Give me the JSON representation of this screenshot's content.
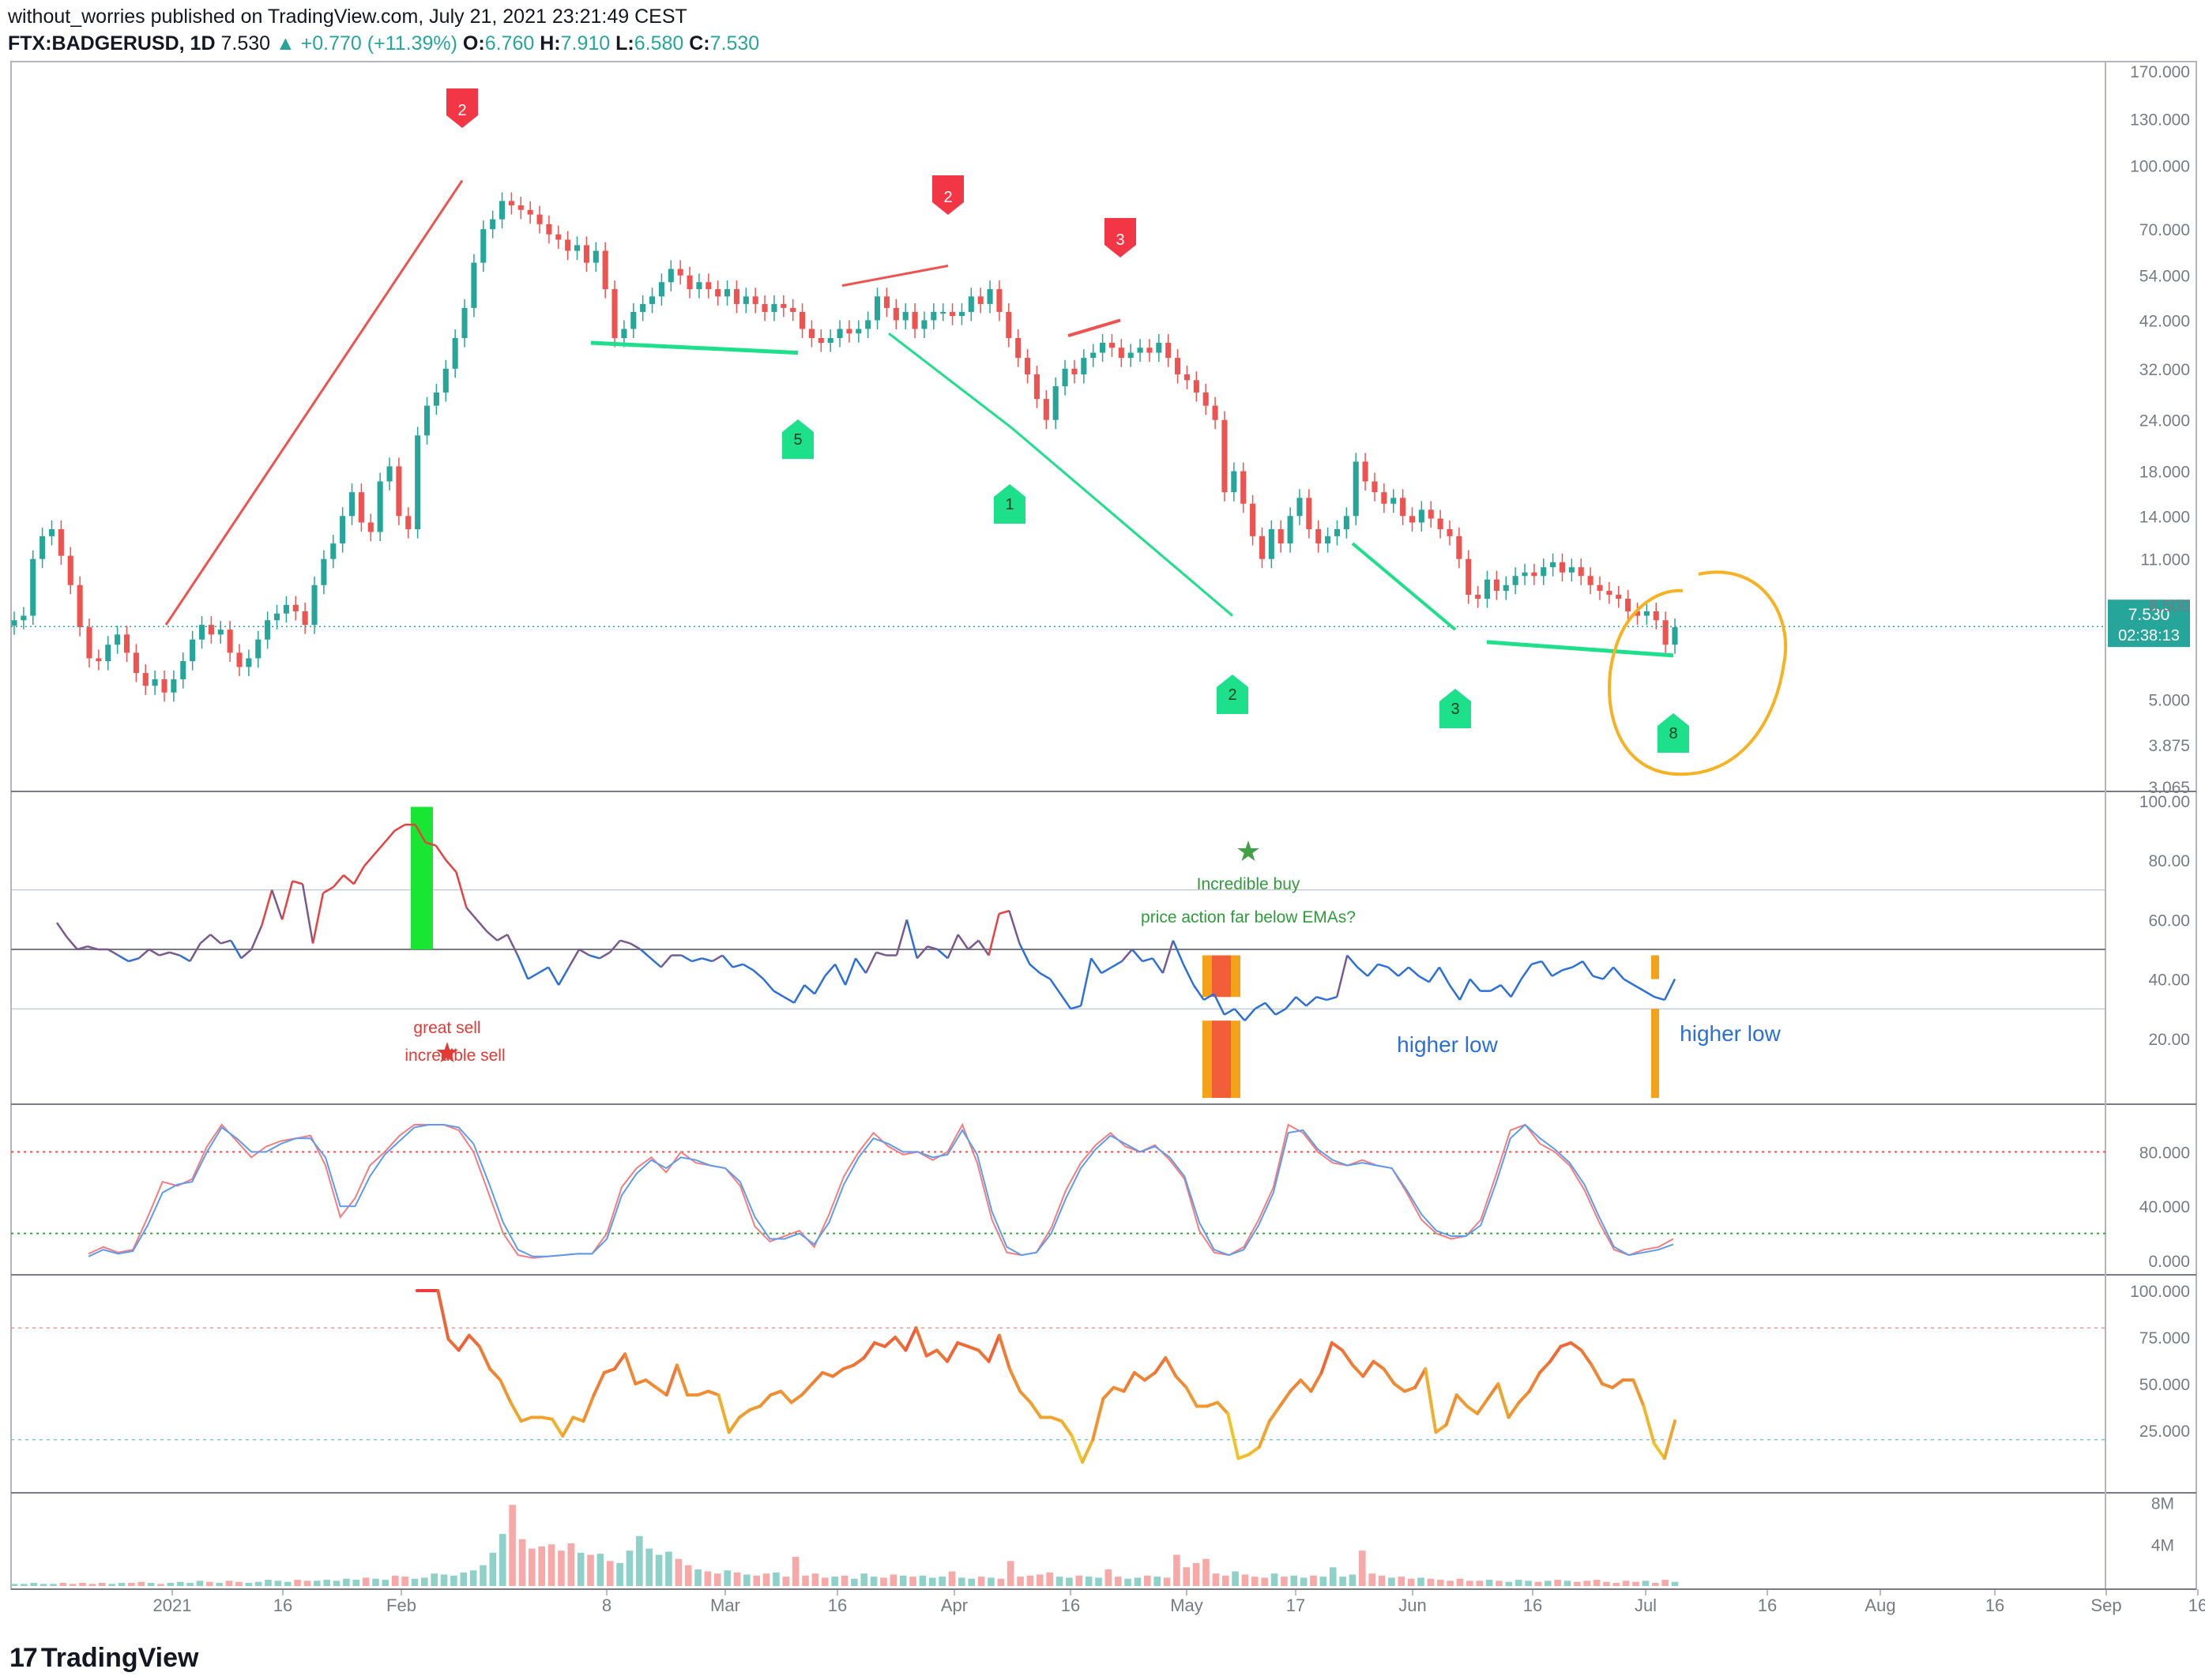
{
  "header": {
    "line1": "without_worries published on TradingView.com, July 21, 2021 23:21:49 CEST",
    "symbol": "FTX:BADGERUSD, 1D",
    "last": "7.530",
    "change": "▲ +0.770 (+11.39%)",
    "o_label": "O:",
    "o_value": "6.760",
    "h_label": "H:",
    "h_value": "7.910",
    "l_label": "L:",
    "l_value": "6.580",
    "c_label": "C:",
    "c_value": "7.530"
  },
  "price_badge": {
    "price": "7.530",
    "countdown": "02:38:13"
  },
  "footer": {
    "brand": "TradingView",
    "logo_icon": "tradingview-logo-icon"
  },
  "colors": {
    "up": "#26a69a",
    "down": "#ef5350",
    "signal_green": "#1de08a",
    "signal_red": "#f23645",
    "circle": "#f6b221",
    "rsi_blue": "#2a6fdb"
  },
  "chart_data": [
    {
      "type": "candlestick",
      "pane": "price",
      "scale": "log",
      "y_ticks": [
        "170.000",
        "130.000",
        "100.000",
        "70.000",
        "54.000",
        "42.000",
        "32.000",
        "24.000",
        "18.000",
        "14.000",
        "11.000",
        "8.500",
        "5.000",
        "3.875",
        "3.065"
      ],
      "x_ticks": [
        "2021",
        "16",
        "Feb",
        "8",
        "Mar",
        "16",
        "Apr",
        "16",
        "May",
        "17",
        "Jun",
        "16",
        "Jul",
        "16",
        "Aug",
        "16",
        "Sep",
        "16"
      ],
      "close_series_approx": [
        7.8,
        8.0,
        11.0,
        12.5,
        13.0,
        11.2,
        9.5,
        7.5,
        6.3,
        6.2,
        6.8,
        7.2,
        6.5,
        5.8,
        5.4,
        5.6,
        5.2,
        5.6,
        6.2,
        7.0,
        7.6,
        7.2,
        7.4,
        6.5,
        6.0,
        6.3,
        7.0,
        7.8,
        8.1,
        8.5,
        8.2,
        7.6,
        9.5,
        11.0,
        12.0,
        14.0,
        16.0,
        13.5,
        12.8,
        17.0,
        18.5,
        14.0,
        13.0,
        22.0,
        26.0,
        28.0,
        32.0,
        38.0,
        45.0,
        58.0,
        70.0,
        74.0,
        82.0,
        80.0,
        78.0,
        76.0,
        72.0,
        68.0,
        66.0,
        62.0,
        64.0,
        58.0,
        62.0,
        50.0,
        38.0,
        40.0,
        44.0,
        46.0,
        48.0,
        52.0,
        56.0,
        54.0,
        50.0,
        52.0,
        50.0,
        48.0,
        50.0,
        46.0,
        48.0,
        46.0,
        44.0,
        46.0,
        45.0,
        44.0,
        40.0,
        38.0,
        37.0,
        38.0,
        40.0,
        39.0,
        40.0,
        42.0,
        48.0,
        45.0,
        42.0,
        44.0,
        40.0,
        42.0,
        44.0,
        44.0,
        43.0,
        44.0,
        48.0,
        46.0,
        50.0,
        44.0,
        38.0,
        34.0,
        31.0,
        27.0,
        24.0,
        29.0,
        32.0,
        31.0,
        34.0,
        35.0,
        37.0,
        36.0,
        34.0,
        35.0,
        36.0,
        35.0,
        37.0,
        34.0,
        31.0,
        30.0,
        28.0,
        26.0,
        24.0,
        16.0,
        18.0,
        15.0,
        12.5,
        11.0,
        13.0,
        12.0,
        14.0,
        15.5,
        13.0,
        12.0,
        12.5,
        13.0,
        14.0,
        19.0,
        17.0,
        16.0,
        15.0,
        15.5,
        14.0,
        13.5,
        14.5,
        13.8,
        13.0,
        12.5,
        11.0,
        9.0,
        8.8,
        9.8,
        9.2,
        9.5,
        10.0,
        10.2,
        10.0,
        10.5,
        10.8,
        10.2,
        10.5,
        10.0,
        9.5,
        9.2,
        9.0,
        8.8,
        8.2,
        8.0,
        8.2,
        7.8,
        6.8,
        7.5
      ],
      "annotations": [
        {
          "label": "2",
          "kind": "sell"
        },
        {
          "label": "2",
          "kind": "sell"
        },
        {
          "label": "3",
          "kind": "sell"
        },
        {
          "label": "5",
          "kind": "buy"
        },
        {
          "label": "1",
          "kind": "buy"
        },
        {
          "label": "2",
          "kind": "buy"
        },
        {
          "label": "3",
          "kind": "buy"
        },
        {
          "label": "8",
          "kind": "buy"
        }
      ]
    },
    {
      "type": "line",
      "pane": "rsi",
      "y_ticks": [
        "100.00",
        "80.00",
        "60.00",
        "40.00",
        "20.00"
      ],
      "ylim": [
        0,
        100
      ],
      "bands": [
        30,
        50,
        70
      ],
      "values_approx": [
        59,
        54,
        50,
        51,
        50,
        50,
        48,
        46,
        47,
        50,
        48,
        49,
        48,
        46,
        52,
        55,
        52,
        53,
        47,
        50,
        58,
        70,
        60,
        73,
        72,
        52,
        69,
        71,
        75,
        72,
        78,
        82,
        86,
        90,
        92,
        92,
        86,
        85,
        80,
        76,
        64,
        60,
        56,
        53,
        55,
        48,
        40,
        42,
        44,
        38,
        44,
        50,
        48,
        47,
        49,
        53,
        52,
        50,
        47,
        44,
        48,
        48,
        46,
        47,
        46,
        48,
        44,
        45,
        43,
        40,
        36,
        34,
        32,
        38,
        35,
        41,
        45,
        38,
        47,
        42,
        49,
        48,
        48,
        60,
        47,
        51,
        50,
        47,
        55,
        50,
        53,
        48,
        62,
        63,
        52,
        45,
        42,
        40,
        35,
        30,
        31,
        47,
        42,
        44,
        46,
        50,
        46,
        47,
        42,
        53,
        45,
        38,
        33,
        35,
        28,
        30,
        26,
        30,
        32,
        28,
        30,
        34,
        31,
        34,
        33,
        34,
        48,
        44,
        41,
        45,
        44,
        41,
        44,
        41,
        39,
        44,
        38,
        33,
        40,
        36,
        36,
        38,
        34,
        40,
        45,
        46,
        41,
        43,
        44,
        46,
        41,
        40,
        44,
        40,
        38,
        36,
        34,
        33,
        40
      ],
      "texts": {
        "incredible_buy": "Incredible buy",
        "price_action": "price action far below EMAs?",
        "great_sell": "great sell",
        "incredible_sell": "incredible sell",
        "higher_low_1": "higher low",
        "higher_low_2": "higher low"
      }
    },
    {
      "type": "line",
      "pane": "stoch_rsi",
      "y_ticks": [
        "80.000",
        "40.000",
        "0.000"
      ],
      "ylim": [
        0,
        100
      ],
      "levels": [
        80,
        20
      ],
      "series": [
        {
          "values_approx": [
            5,
            10,
            6,
            8,
            32,
            58,
            55,
            60,
            84,
            100,
            88,
            76,
            84,
            88,
            90,
            92,
            70,
            32,
            46,
            70,
            80,
            92,
            100,
            100,
            100,
            96,
            80,
            50,
            20,
            4,
            2,
            3,
            4,
            5,
            5,
            20,
            54,
            68,
            76,
            65,
            80,
            72,
            70,
            68,
            55,
            25,
            14,
            18,
            22,
            10,
            34,
            62,
            80,
            94,
            84,
            78,
            80,
            74,
            80,
            100,
            72,
            30,
            6,
            4,
            6,
            24,
            52,
            72,
            85,
            94,
            84,
            80,
            85,
            74,
            60,
            22,
            6,
            4,
            10,
            30,
            54,
            100,
            94,
            80,
            72,
            70,
            74,
            70,
            68,
            50,
            30,
            20,
            16,
            18,
            30,
            62,
            96,
            100,
            86,
            80,
            70,
            52,
            28,
            8,
            4,
            8,
            10,
            16
          ]
        },
        {
          "values_approx": [
            3,
            8,
            5,
            7,
            26,
            50,
            56,
            58,
            80,
            98,
            90,
            80,
            80,
            86,
            90,
            90,
            76,
            40,
            40,
            62,
            78,
            88,
            98,
            100,
            100,
            98,
            86,
            58,
            28,
            8,
            3,
            3,
            4,
            5,
            5,
            16,
            48,
            64,
            74,
            68,
            76,
            74,
            70,
            68,
            58,
            32,
            16,
            16,
            20,
            12,
            28,
            56,
            76,
            90,
            86,
            80,
            80,
            76,
            78,
            96,
            78,
            36,
            10,
            4,
            6,
            20,
            46,
            68,
            82,
            92,
            86,
            80,
            84,
            76,
            62,
            28,
            8,
            4,
            8,
            26,
            50,
            94,
            96,
            82,
            74,
            70,
            72,
            70,
            68,
            52,
            34,
            22,
            18,
            18,
            26,
            56,
            90,
            100,
            90,
            82,
            72,
            56,
            32,
            10,
            4,
            6,
            8,
            12
          ]
        }
      ]
    },
    {
      "type": "line",
      "pane": "oscillator",
      "y_ticks": [
        "100.000",
        "75.000",
        "50.000",
        "25.000"
      ],
      "ylim": [
        0,
        100
      ],
      "levels": [
        80,
        20
      ],
      "values_approx": [
        100,
        100,
        100,
        74,
        68,
        76,
        70,
        58,
        52,
        40,
        30,
        32,
        32,
        31,
        22,
        32,
        30,
        44,
        56,
        58,
        66,
        50,
        52,
        48,
        44,
        60,
        44,
        44,
        46,
        44,
        24,
        32,
        36,
        38,
        44,
        46,
        40,
        44,
        50,
        56,
        54,
        58,
        60,
        64,
        72,
        70,
        75,
        68,
        80,
        65,
        68,
        62,
        72,
        70,
        68,
        62,
        76,
        58,
        46,
        40,
        32,
        32,
        30,
        22,
        8,
        20,
        42,
        48,
        46,
        56,
        52,
        56,
        64,
        54,
        48,
        38,
        38,
        40,
        34,
        10,
        12,
        16,
        30,
        38,
        46,
        52,
        46,
        56,
        72,
        68,
        60,
        54,
        62,
        58,
        50,
        46,
        48,
        58,
        24,
        28,
        44,
        38,
        34,
        42,
        50,
        32,
        40,
        46,
        56,
        62,
        70,
        72,
        68,
        60,
        50,
        48,
        52,
        52,
        38,
        18,
        10,
        30
      ]
    },
    {
      "type": "bar",
      "pane": "volume",
      "y_ticks": [
        "8M",
        "4M"
      ],
      "values_approx": [
        0.2,
        0.2,
        0.3,
        0.2,
        0.2,
        0.3,
        0.2,
        0.3,
        0.2,
        0.3,
        0.2,
        0.3,
        0.3,
        0.4,
        0.3,
        0.2,
        0.3,
        0.4,
        0.3,
        0.5,
        0.4,
        0.3,
        0.5,
        0.4,
        0.3,
        0.4,
        0.6,
        0.5,
        0.4,
        0.6,
        0.5,
        0.5,
        0.6,
        0.5,
        0.7,
        0.6,
        0.8,
        0.7,
        0.6,
        1.0,
        0.9,
        0.7,
        0.8,
        1.2,
        1.1,
        1.0,
        1.3,
        1.5,
        2.0,
        3.2,
        5.0,
        7.8,
        4.5,
        3.6,
        3.8,
        4.0,
        3.4,
        4.1,
        3.2,
        3.0,
        3.1,
        2.4,
        2.2,
        3.4,
        4.8,
        3.6,
        3.0,
        3.3,
        2.6,
        2.0,
        1.6,
        1.4,
        1.2,
        1.5,
        1.3,
        1.1,
        1.0,
        1.2,
        1.3,
        0.9,
        2.8,
        1.0,
        1.2,
        0.8,
        0.9,
        1.0,
        0.7,
        1.2,
        0.9,
        0.8,
        1.1,
        1.0,
        0.9,
        1.0,
        0.8,
        0.9,
        1.4,
        0.8,
        0.7,
        0.9,
        0.8,
        0.7,
        2.4,
        0.9,
        1.0,
        1.1,
        1.3,
        0.9,
        0.8,
        1.0,
        0.9,
        0.8,
        1.6,
        0.9,
        0.7,
        0.8,
        1.0,
        0.9,
        0.8,
        3.0,
        1.8,
        2.2,
        2.6,
        1.2,
        1.0,
        1.4,
        1.1,
        0.9,
        0.8,
        1.2,
        0.9,
        1.0,
        0.8,
        1.0,
        0.9,
        1.8,
        0.9,
        1.1,
        3.4,
        1.2,
        1.0,
        0.8,
        0.9,
        0.7,
        0.8,
        0.7,
        0.6,
        0.5,
        0.7,
        0.5,
        0.5,
        0.6,
        0.5,
        0.4,
        0.6,
        0.5,
        0.4,
        0.5,
        0.6,
        0.5,
        0.4,
        0.5,
        0.6,
        0.4,
        0.3,
        0.5,
        0.4,
        0.5,
        0.3,
        0.6,
        0.4
      ]
    }
  ]
}
